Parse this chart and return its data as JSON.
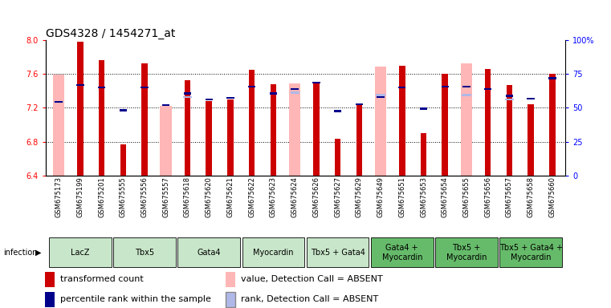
{
  "title": "GDS4328 / 1454271_at",
  "samples": [
    "GSM675173",
    "GSM675199",
    "GSM675201",
    "GSM675555",
    "GSM675556",
    "GSM675557",
    "GSM675618",
    "GSM675620",
    "GSM675621",
    "GSM675622",
    "GSM675623",
    "GSM675624",
    "GSM675626",
    "GSM675627",
    "GSM675629",
    "GSM675649",
    "GSM675651",
    "GSM675653",
    "GSM675654",
    "GSM675655",
    "GSM675656",
    "GSM675657",
    "GSM675658",
    "GSM675660"
  ],
  "red_values": [
    null,
    7.98,
    7.76,
    6.77,
    7.72,
    null,
    7.53,
    7.28,
    7.3,
    7.65,
    7.48,
    null,
    7.5,
    6.83,
    7.24,
    null,
    7.7,
    6.9,
    7.6,
    null,
    7.66,
    7.47,
    7.24,
    7.6
  ],
  "pink_values": [
    7.59,
    null,
    null,
    null,
    null,
    7.22,
    null,
    null,
    null,
    null,
    null,
    7.49,
    null,
    null,
    null,
    7.69,
    null,
    null,
    null,
    7.72,
    null,
    null,
    null,
    null
  ],
  "blue_values": [
    7.27,
    7.47,
    7.44,
    7.17,
    7.44,
    7.23,
    7.37,
    7.3,
    7.32,
    7.45,
    7.37,
    7.42,
    7.5,
    7.16,
    7.24,
    7.33,
    7.44,
    7.19,
    7.45,
    7.45,
    7.42,
    7.34,
    7.31,
    7.55
  ],
  "lightblue_values": [
    7.27,
    null,
    null,
    null,
    null,
    null,
    7.33,
    null,
    null,
    null,
    null,
    7.38,
    null,
    null,
    null,
    7.35,
    null,
    null,
    null,
    7.35,
    null,
    7.3,
    null,
    null
  ],
  "groups": [
    {
      "label": "LacZ",
      "start": 0,
      "end": 2,
      "color": "#c8e6c9"
    },
    {
      "label": "Tbx5",
      "start": 3,
      "end": 5,
      "color": "#c8e6c9"
    },
    {
      "label": "Gata4",
      "start": 6,
      "end": 8,
      "color": "#c8e6c9"
    },
    {
      "label": "Myocardin",
      "start": 9,
      "end": 11,
      "color": "#c8e6c9"
    },
    {
      "label": "Tbx5 + Gata4",
      "start": 12,
      "end": 14,
      "color": "#c8e6c9"
    },
    {
      "label": "Gata4 +\nMyocardin",
      "start": 15,
      "end": 17,
      "color": "#66bb6a"
    },
    {
      "label": "Tbx5 +\nMyocardin",
      "start": 18,
      "end": 20,
      "color": "#66bb6a"
    },
    {
      "label": "Tbx5 + Gata4 +\nMyocardin",
      "start": 21,
      "end": 23,
      "color": "#66bb6a"
    }
  ],
  "ylim": [
    6.4,
    8.0
  ],
  "yticks": [
    6.4,
    6.8,
    7.2,
    7.6,
    8.0
  ],
  "ytick_dotted": [
    6.8,
    7.2,
    7.6
  ],
  "right_yticks": [
    0,
    25,
    50,
    75,
    100
  ],
  "right_ylabels": [
    "0",
    "25",
    "50",
    "75",
    "100%"
  ],
  "red_color": "#cc0000",
  "pink_color": "#ffb6b6",
  "blue_color": "#00008b",
  "lightblue_color": "#b0b8e8",
  "title_fontsize": 10,
  "tick_fontsize": 7,
  "group_fontsize": 7,
  "legend_fontsize": 8
}
